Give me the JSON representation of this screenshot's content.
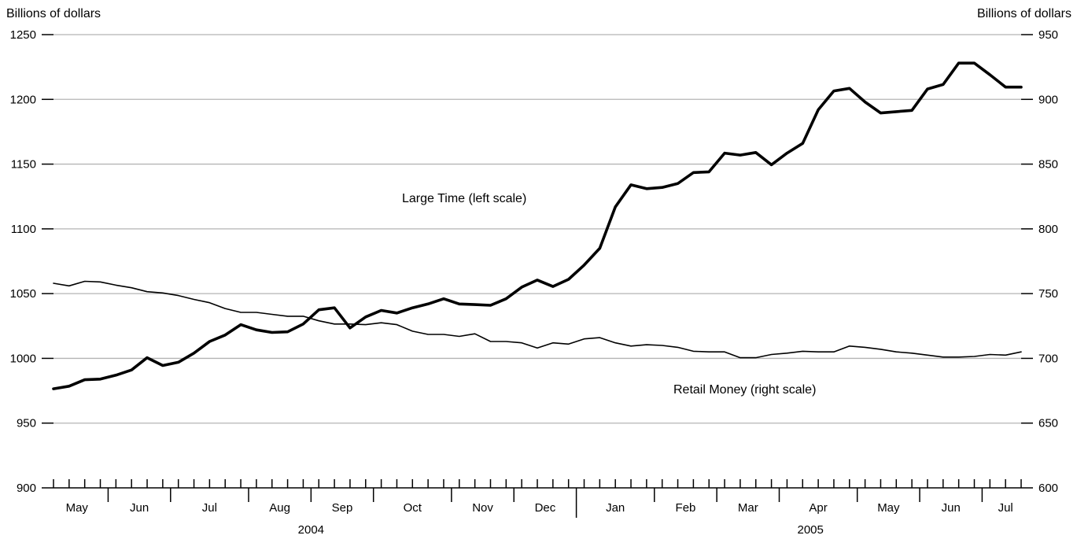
{
  "chart_data": {
    "type": "line",
    "left_axis": {
      "title": "Billions of dollars",
      "range": [
        900,
        1250
      ],
      "ticks": [
        900,
        950,
        1000,
        1050,
        1100,
        1150,
        1200,
        1250
      ]
    },
    "right_axis": {
      "title": "Billions of dollars",
      "range": [
        600,
        950
      ],
      "ticks": [
        600,
        650,
        700,
        750,
        800,
        850,
        900,
        950
      ]
    },
    "x_axis": {
      "range": [
        0,
        62
      ],
      "months": [
        "May",
        "Jun",
        "Jul",
        "Aug",
        "Sep",
        "Oct",
        "Nov",
        "Dec",
        "Jan",
        "Feb",
        "Mar",
        "Apr",
        "May",
        "Jun",
        "Jul"
      ],
      "weeks_per_month": [
        4,
        4,
        5,
        4,
        4,
        5,
        4,
        4,
        5,
        4,
        4,
        5,
        4,
        4,
        4
      ],
      "years": [
        {
          "label": "2004",
          "start_month": 0,
          "end_month": 7
        },
        {
          "label": "2005",
          "start_month": 8,
          "end_month": 14
        }
      ]
    },
    "grid": true,
    "series": [
      {
        "name": "Large Time (left scale)",
        "axis": "left",
        "values": [
          976.5,
          978.5,
          983.5,
          984,
          987,
          991,
          1000.5,
          994.5,
          997,
          1004,
          1013,
          1018,
          1026,
          1022,
          1020,
          1020.5,
          1026.5,
          1037.5,
          1039,
          1023.5,
          1032,
          1037,
          1035,
          1039,
          1042,
          1046,
          1042,
          1041.5,
          1041,
          1046,
          1055,
          1060.5,
          1055.5,
          1061,
          1072,
          1085,
          1117,
          1134,
          1131,
          1132,
          1135,
          1143.5,
          1144,
          1158.5,
          1157,
          1159,
          1149.5,
          1158.5,
          1166,
          1192,
          1206.5,
          1208.5,
          1198,
          1189.5,
          1190.5,
          1191.5,
          1208,
          1211.5,
          1228,
          1228,
          1219,
          1209.5,
          1209.5
        ]
      },
      {
        "name": "Retail Money (right scale)",
        "axis": "right",
        "values": [
          758,
          756,
          759.5,
          759,
          756.5,
          754.5,
          751.5,
          750.5,
          748.5,
          745.5,
          743,
          738.5,
          735.5,
          735.5,
          734,
          732.5,
          732.5,
          729,
          726.5,
          726.5,
          726,
          727.5,
          726,
          721,
          718.5,
          718.5,
          717,
          719,
          713,
          713,
          712,
          708,
          712,
          711,
          715,
          716,
          712,
          709.5,
          710.5,
          710,
          708.5,
          705.5,
          705,
          705,
          700.5,
          700.5,
          703,
          704,
          705.5,
          705,
          705,
          709.5,
          708.5,
          707,
          705,
          704,
          702.5,
          701,
          701,
          701.5,
          703,
          702.5,
          705
        ]
      }
    ],
    "annotations": [
      {
        "text": "Large Time (left scale)",
        "series": 0
      },
      {
        "text": "Retail Money (right scale)",
        "series": 1
      }
    ]
  }
}
